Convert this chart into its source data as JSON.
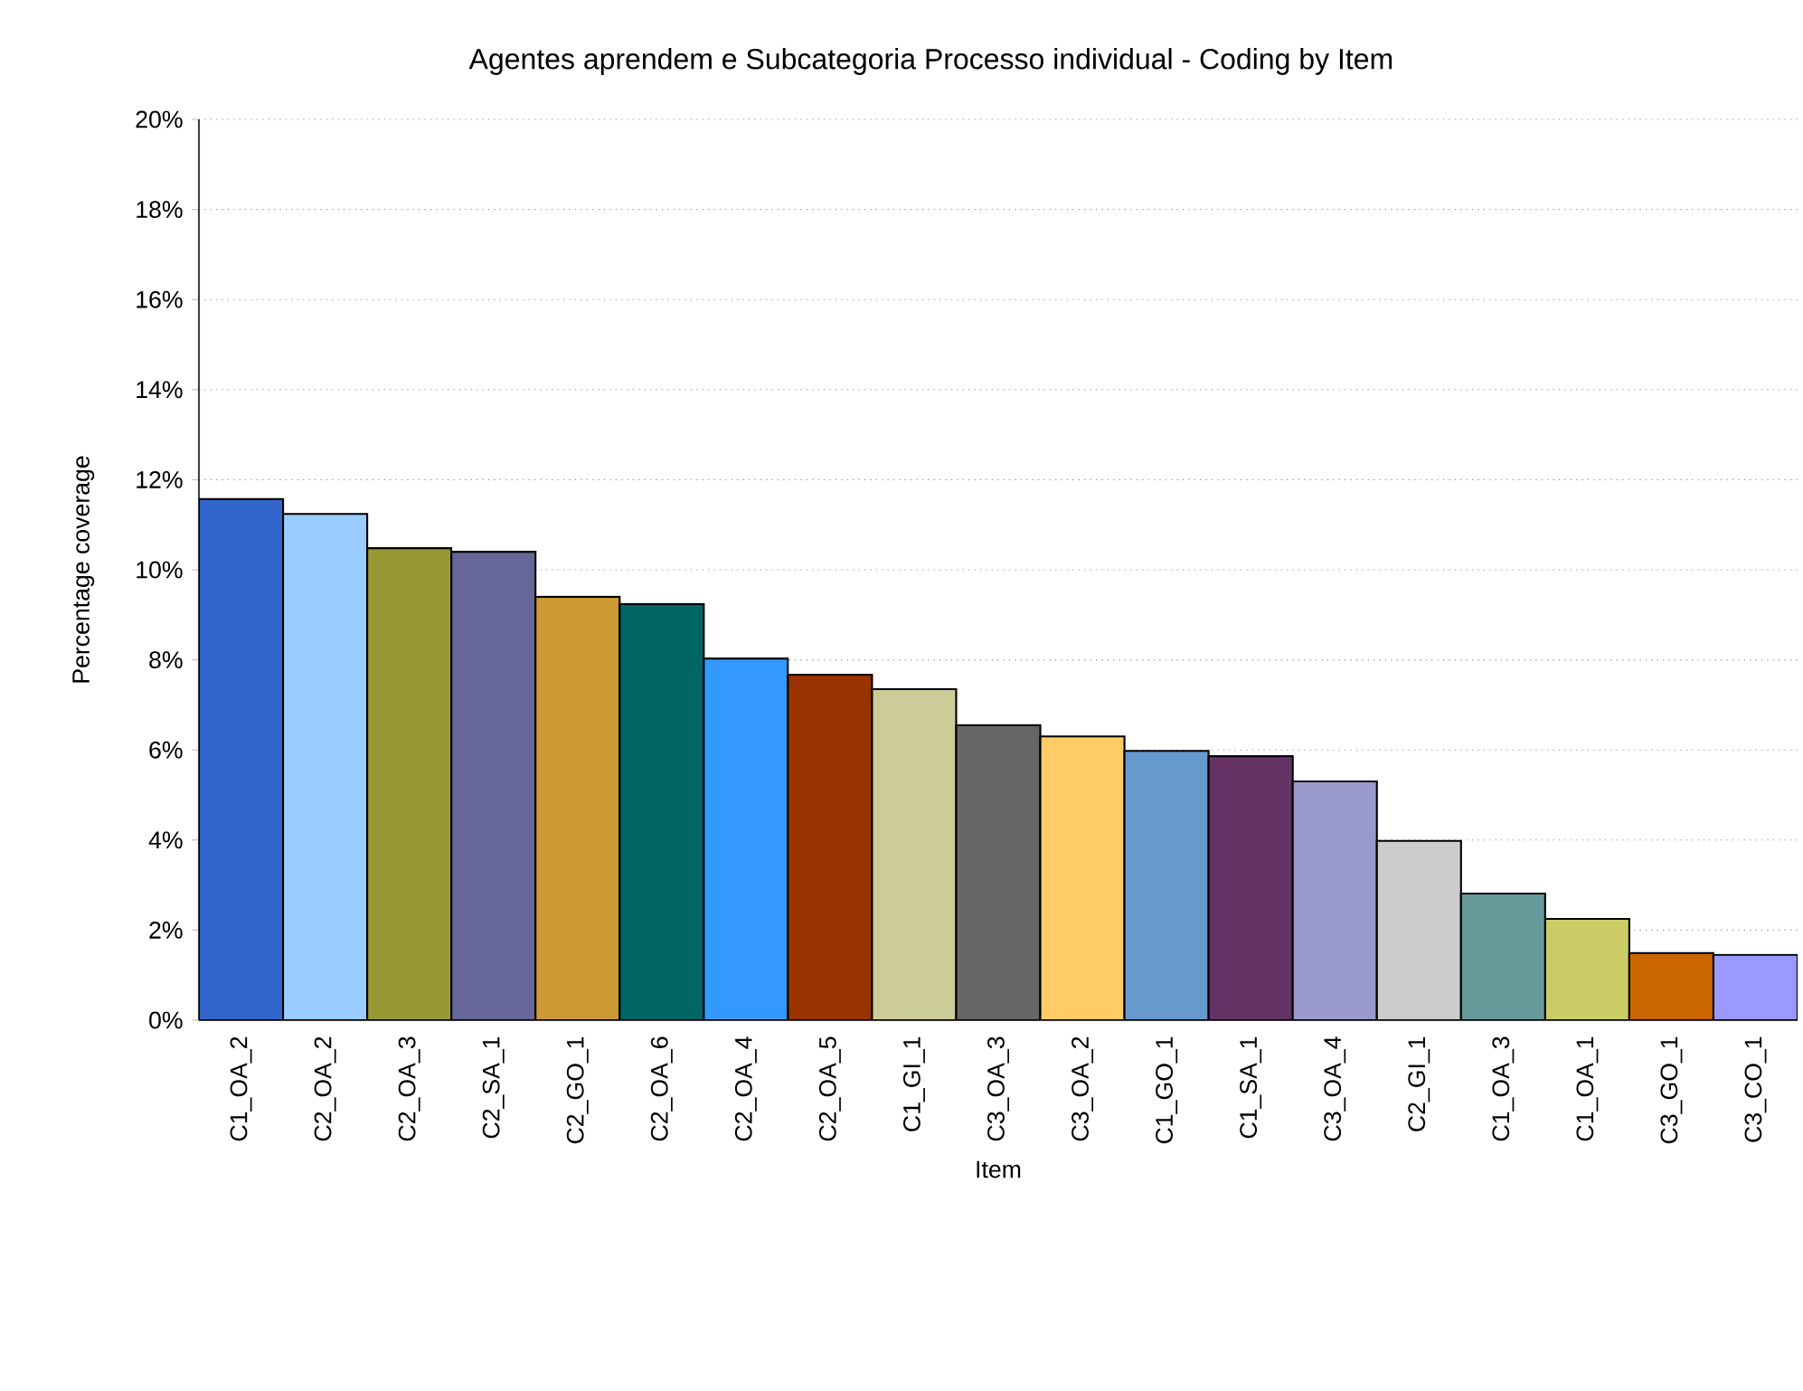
{
  "chart_data": {
    "type": "bar",
    "title": "Agentes aprendem e Subcategoria Processo individual - Coding by Item",
    "xlabel": "Item",
    "ylabel": "Percentage coverage",
    "categories": [
      "C1_OA_2",
      "C2_OA_2",
      "C2_OA_3",
      "C2_SA_1",
      "C2_GO_1",
      "C2_OA_6",
      "C2_OA_4",
      "C2_OA_5",
      "C1_GI_1",
      "C3_OA_3",
      "C3_OA_2",
      "C1_GO_1",
      "C1_SA_1",
      "C3_OA_4",
      "C2_GI_1",
      "C1_OA_3",
      "C1_OA_1",
      "C3_GO_1",
      "C3_CO_1"
    ],
    "values": [
      11.57,
      11.24,
      10.48,
      10.4,
      9.4,
      9.24,
      8.03,
      7.67,
      7.35,
      6.55,
      6.3,
      5.98,
      5.86,
      5.3,
      3.98,
      2.81,
      2.25,
      1.49,
      1.45
    ],
    "colors": [
      "#3366cc",
      "#99ccff",
      "#999933",
      "#666699",
      "#cc9933",
      "#006666",
      "#3399ff",
      "#993300",
      "#cccc99",
      "#666666",
      "#ffcc66",
      "#6699cc",
      "#663366",
      "#9999cc",
      "#cccccc",
      "#669999",
      "#cccc66",
      "#cc6600",
      "#9999ff"
    ],
    "ylim": [
      0,
      20
    ],
    "yticks": [
      {
        "value": 0,
        "label": "0%"
      },
      {
        "value": 2,
        "label": "2%"
      },
      {
        "value": 4,
        "label": "4%"
      },
      {
        "value": 6,
        "label": "6%"
      },
      {
        "value": 8,
        "label": "8%"
      },
      {
        "value": 10,
        "label": "10%"
      },
      {
        "value": 12,
        "label": "12%"
      },
      {
        "value": 14,
        "label": "14%"
      },
      {
        "value": 16,
        "label": "16%"
      },
      {
        "value": 18,
        "label": "18%"
      },
      {
        "value": 20,
        "label": "20%"
      }
    ],
    "grid": "y"
  }
}
